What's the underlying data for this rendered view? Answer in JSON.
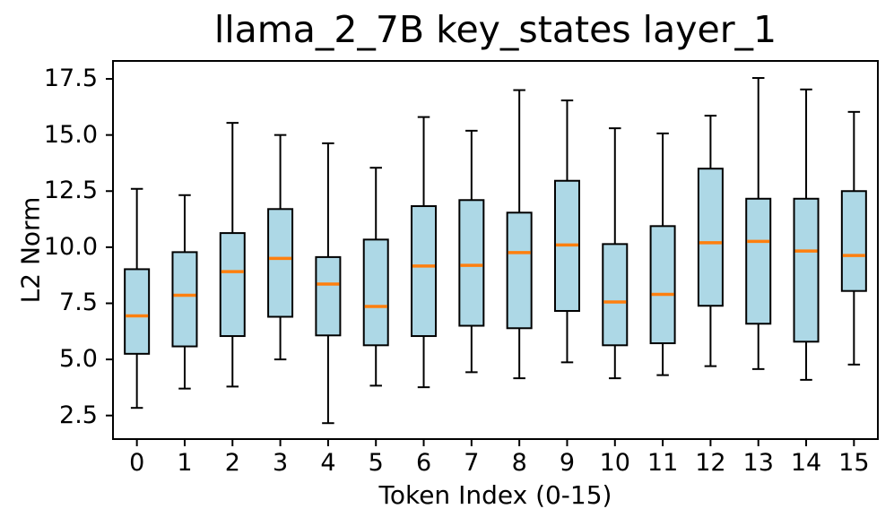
{
  "chart_data": {
    "type": "boxplot",
    "title": "llama_2_7B key_states layer_1",
    "xlabel": "Token Index (0-15)",
    "ylabel": "L2 Norm",
    "categories": [
      "0",
      "1",
      "2",
      "3",
      "4",
      "5",
      "6",
      "7",
      "8",
      "9",
      "10",
      "11",
      "12",
      "13",
      "14",
      "15"
    ],
    "yticks": [
      2.5,
      5.0,
      7.5,
      10.0,
      12.5,
      15.0,
      17.5
    ],
    "ytick_labels": [
      "2.5",
      "5.0",
      "7.5",
      "10.0",
      "12.5",
      "15.0",
      "17.5"
    ],
    "ylim": [
      1.45,
      18.3
    ],
    "grid": false,
    "legend": null,
    "colors": {
      "box_fill": "#add8e6",
      "box_edge": "#000000",
      "median": "#ff7f0e",
      "whisker": "#000000",
      "axis": "#000000",
      "background": "#ffffff"
    },
    "series": [
      {
        "token": "0",
        "whislo": 2.84,
        "q1": 5.25,
        "med": 6.94,
        "q3": 9.02,
        "whishi": 12.6
      },
      {
        "token": "1",
        "whislo": 3.7,
        "q1": 5.58,
        "med": 7.86,
        "q3": 9.78,
        "whishi": 12.32
      },
      {
        "token": "2",
        "whislo": 3.79,
        "q1": 6.04,
        "med": 8.91,
        "q3": 10.63,
        "whishi": 15.54
      },
      {
        "token": "3",
        "whislo": 5.0,
        "q1": 6.9,
        "med": 9.5,
        "q3": 11.7,
        "whishi": 15.0
      },
      {
        "token": "4",
        "whislo": 2.16,
        "q1": 6.07,
        "med": 8.36,
        "q3": 9.56,
        "whishi": 14.63
      },
      {
        "token": "5",
        "whislo": 3.83,
        "q1": 5.63,
        "med": 7.36,
        "q3": 10.34,
        "whishi": 13.54
      },
      {
        "token": "6",
        "whislo": 3.76,
        "q1": 6.04,
        "med": 9.16,
        "q3": 11.83,
        "whishi": 15.8
      },
      {
        "token": "7",
        "whislo": 4.43,
        "q1": 6.5,
        "med": 9.19,
        "q3": 12.1,
        "whishi": 15.19
      },
      {
        "token": "8",
        "whislo": 4.16,
        "q1": 6.39,
        "med": 9.76,
        "q3": 11.54,
        "whishi": 17.0
      },
      {
        "token": "9",
        "whislo": 4.87,
        "q1": 7.16,
        "med": 10.1,
        "q3": 12.96,
        "whishi": 16.54
      },
      {
        "token": "10",
        "whislo": 4.16,
        "q1": 5.63,
        "med": 7.56,
        "q3": 10.14,
        "whishi": 15.3
      },
      {
        "token": "11",
        "whislo": 4.3,
        "q1": 5.72,
        "med": 7.9,
        "q3": 10.94,
        "whishi": 15.07
      },
      {
        "token": "12",
        "whislo": 4.7,
        "q1": 7.39,
        "med": 10.2,
        "q3": 13.5,
        "whishi": 15.86
      },
      {
        "token": "13",
        "whislo": 4.57,
        "q1": 6.59,
        "med": 10.26,
        "q3": 12.16,
        "whishi": 17.54
      },
      {
        "token": "14",
        "whislo": 4.09,
        "q1": 5.79,
        "med": 9.83,
        "q3": 12.16,
        "whishi": 17.03
      },
      {
        "token": "15",
        "whislo": 4.77,
        "q1": 8.05,
        "med": 9.63,
        "q3": 12.5,
        "whishi": 16.03
      }
    ]
  }
}
